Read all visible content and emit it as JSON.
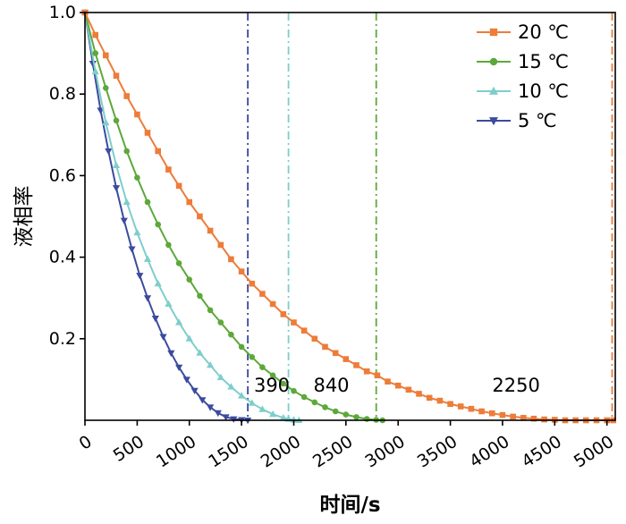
{
  "chart_data": {
    "type": "line",
    "title": "",
    "xlabel": "时间/s",
    "ylabel": "液相率",
    "xlim": [
      0,
      5080
    ],
    "ylim": [
      0,
      1.0
    ],
    "xtick_labels": [
      "0",
      "500",
      "1000",
      "1500",
      "2000",
      "2500",
      "3000",
      "3500",
      "4000",
      "4500",
      "5000"
    ],
    "xtick_values": [
      0,
      500,
      1000,
      1500,
      2000,
      2500,
      3000,
      3500,
      4000,
      4500,
      5000
    ],
    "ytick_labels": [
      "0.2",
      "0.4",
      "0.6",
      "0.8",
      "1.0"
    ],
    "ytick_values": [
      0.2,
      0.4,
      0.6,
      0.8,
      1.0
    ],
    "grid": false,
    "legend_position": "top-right",
    "series": [
      {
        "name": "20 ℃",
        "color": "#ED7C39",
        "marker": "square",
        "points": [
          [
            0,
            1.0
          ],
          [
            100,
            0.945
          ],
          [
            200,
            0.895
          ],
          [
            300,
            0.845
          ],
          [
            400,
            0.795
          ],
          [
            500,
            0.75
          ],
          [
            600,
            0.705
          ],
          [
            700,
            0.66
          ],
          [
            800,
            0.615
          ],
          [
            900,
            0.575
          ],
          [
            1000,
            0.535
          ],
          [
            1100,
            0.5
          ],
          [
            1200,
            0.465
          ],
          [
            1300,
            0.43
          ],
          [
            1400,
            0.395
          ],
          [
            1500,
            0.365
          ],
          [
            1600,
            0.335
          ],
          [
            1700,
            0.31
          ],
          [
            1800,
            0.285
          ],
          [
            1900,
            0.26
          ],
          [
            2000,
            0.24
          ],
          [
            2100,
            0.22
          ],
          [
            2200,
            0.2
          ],
          [
            2300,
            0.18
          ],
          [
            2400,
            0.165
          ],
          [
            2500,
            0.15
          ],
          [
            2600,
            0.135
          ],
          [
            2700,
            0.12
          ],
          [
            2800,
            0.11
          ],
          [
            2900,
            0.095
          ],
          [
            3000,
            0.085
          ],
          [
            3100,
            0.075
          ],
          [
            3200,
            0.065
          ],
          [
            3300,
            0.055
          ],
          [
            3400,
            0.048
          ],
          [
            3500,
            0.04
          ],
          [
            3600,
            0.034
          ],
          [
            3700,
            0.028
          ],
          [
            3800,
            0.022
          ],
          [
            3900,
            0.017
          ],
          [
            4000,
            0.013
          ],
          [
            4100,
            0.009
          ],
          [
            4200,
            0.006
          ],
          [
            4300,
            0.004
          ],
          [
            4400,
            0.002
          ],
          [
            4500,
            0.001
          ],
          [
            4600,
            0
          ],
          [
            4700,
            0
          ],
          [
            4800,
            0
          ],
          [
            4900,
            0
          ],
          [
            5000,
            0
          ],
          [
            5060,
            0
          ]
        ]
      },
      {
        "name": "15 ℃",
        "color": "#5DA83A",
        "marker": "circle",
        "points": [
          [
            0,
            1.0
          ],
          [
            100,
            0.9
          ],
          [
            200,
            0.815
          ],
          [
            300,
            0.735
          ],
          [
            400,
            0.66
          ],
          [
            500,
            0.595
          ],
          [
            600,
            0.535
          ],
          [
            700,
            0.48
          ],
          [
            800,
            0.43
          ],
          [
            900,
            0.385
          ],
          [
            1000,
            0.345
          ],
          [
            1100,
            0.305
          ],
          [
            1200,
            0.27
          ],
          [
            1300,
            0.24
          ],
          [
            1400,
            0.21
          ],
          [
            1500,
            0.18
          ],
          [
            1600,
            0.155
          ],
          [
            1700,
            0.13
          ],
          [
            1800,
            0.11
          ],
          [
            1900,
            0.09
          ],
          [
            2000,
            0.072
          ],
          [
            2100,
            0.057
          ],
          [
            2200,
            0.044
          ],
          [
            2300,
            0.032
          ],
          [
            2400,
            0.022
          ],
          [
            2500,
            0.014
          ],
          [
            2600,
            0.008
          ],
          [
            2700,
            0.003
          ],
          [
            2790,
            0.001
          ],
          [
            2850,
            0
          ]
        ]
      },
      {
        "name": "10 ℃",
        "color": "#7ECECB",
        "marker": "triangle-up",
        "points": [
          [
            0,
            1.0
          ],
          [
            100,
            0.855
          ],
          [
            200,
            0.73
          ],
          [
            300,
            0.625
          ],
          [
            400,
            0.535
          ],
          [
            500,
            0.46
          ],
          [
            600,
            0.395
          ],
          [
            700,
            0.335
          ],
          [
            800,
            0.285
          ],
          [
            900,
            0.24
          ],
          [
            1000,
            0.2
          ],
          [
            1100,
            0.165
          ],
          [
            1200,
            0.135
          ],
          [
            1300,
            0.105
          ],
          [
            1400,
            0.082
          ],
          [
            1500,
            0.06
          ],
          [
            1600,
            0.042
          ],
          [
            1700,
            0.027
          ],
          [
            1800,
            0.015
          ],
          [
            1900,
            0.006
          ],
          [
            1950,
            0.003
          ],
          [
            2000,
            0.001
          ],
          [
            2050,
            0
          ]
        ]
      },
      {
        "name": "5 ℃",
        "color": "#3C4B9E",
        "marker": "triangle-down",
        "points": [
          [
            0,
            1.0
          ],
          [
            75,
            0.875
          ],
          [
            150,
            0.76
          ],
          [
            225,
            0.66
          ],
          [
            300,
            0.57
          ],
          [
            375,
            0.49
          ],
          [
            450,
            0.42
          ],
          [
            525,
            0.355
          ],
          [
            600,
            0.3
          ],
          [
            675,
            0.25
          ],
          [
            750,
            0.205
          ],
          [
            825,
            0.165
          ],
          [
            900,
            0.13
          ],
          [
            975,
            0.1
          ],
          [
            1050,
            0.073
          ],
          [
            1125,
            0.05
          ],
          [
            1200,
            0.032
          ],
          [
            1275,
            0.018
          ],
          [
            1350,
            0.008
          ],
          [
            1425,
            0.003
          ],
          [
            1500,
            0.001
          ],
          [
            1560,
            0
          ]
        ]
      }
    ],
    "vlines": [
      {
        "x": 1560,
        "color": "#3C4B9E"
      },
      {
        "x": 1950,
        "color": "#7ECECB"
      },
      {
        "x": 2790,
        "color": "#5DA83A"
      },
      {
        "x": 5050,
        "color": "#ED7C39"
      }
    ],
    "annotations": [
      {
        "text": "390",
        "x": 1790,
        "y": 0.07
      },
      {
        "text": "840",
        "x": 2360,
        "y": 0.07
      },
      {
        "text": "2250",
        "x": 4130,
        "y": 0.07
      }
    ]
  }
}
